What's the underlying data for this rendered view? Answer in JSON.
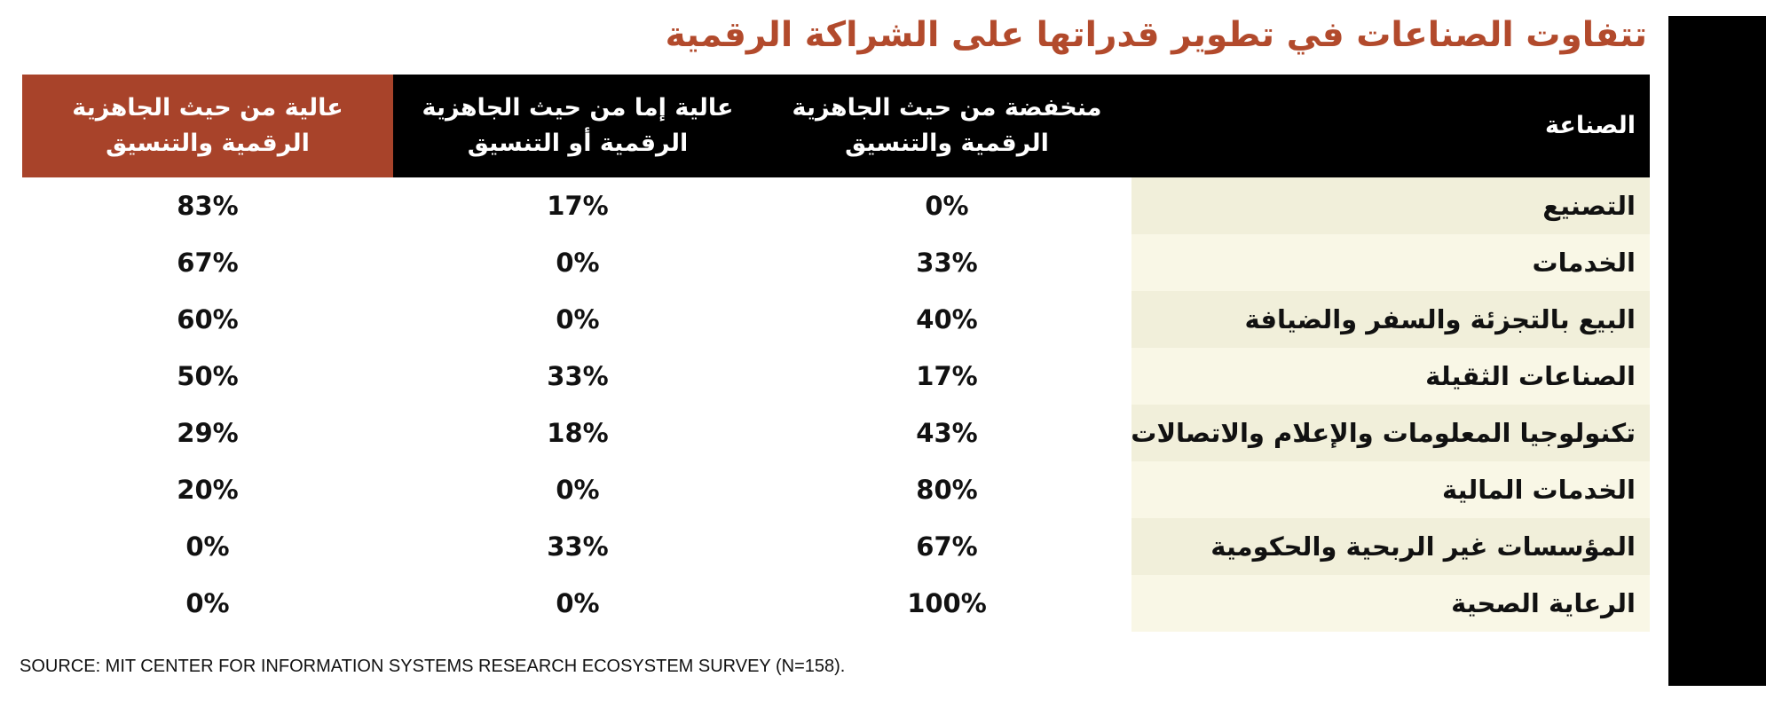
{
  "title": "تتفاوت الصناعات في تطوير قدراتها على الشراكة الرقمية",
  "colors": {
    "title": "#b24a2c",
    "header_bg": "#000000",
    "highlight_header_bg": "#a8432a",
    "industry_cell_bg": "#f1efda"
  },
  "chart_data": {
    "type": "table",
    "columns": [
      "الصناعة",
      "منخفضة من حيث الجاهزية الرقمية والتنسيق",
      "عالية إما من حيث الجاهزية الرقمية أو التنسيق",
      "عالية من حيث الجاهزية الرقمية والتنسيق"
    ],
    "rows": [
      {
        "industry": "التصنيع",
        "low": "0%",
        "either": "17%",
        "high": "83%"
      },
      {
        "industry": "الخدمات",
        "low": "33%",
        "either": "0%",
        "high": "67%"
      },
      {
        "industry": "البيع بالتجزئة والسفر والضيافة",
        "low": "40%",
        "either": "0%",
        "high": "60%"
      },
      {
        "industry": "الصناعات الثقيلة",
        "low": "17%",
        "either": "33%",
        "high": "50%"
      },
      {
        "industry": "تكنولوجيا المعلومات والإعلام والاتصالات",
        "low": "43%",
        "either": "18%",
        "high": "29%"
      },
      {
        "industry": "الخدمات المالية",
        "low": "80%",
        "either": "0%",
        "high": "20%"
      },
      {
        "industry": "المؤسسات غير الربحية والحكومية",
        "low": "67%",
        "either": "33%",
        "high": "0%"
      },
      {
        "industry": "الرعاية الصحية",
        "low": "100%",
        "either": "0%",
        "high": "0%"
      }
    ]
  },
  "source": "SOURCE: MIT CENTER FOR INFORMATION SYSTEMS RESEARCH ECOSYSTEM SURVEY (N=158)."
}
